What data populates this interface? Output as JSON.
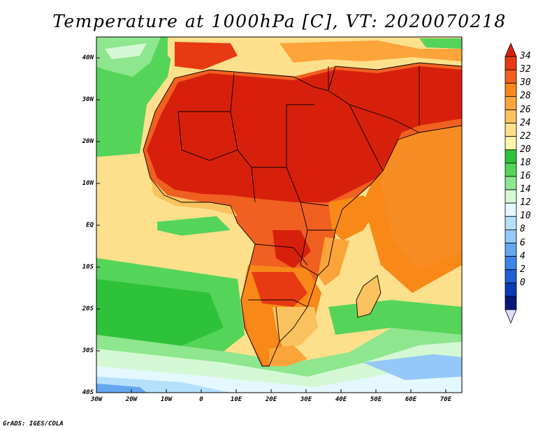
{
  "title": "Temperature at 1000hPa [C], VT: 2020070218",
  "lat_ticks": [
    "40N",
    "30N",
    "20N",
    "10N",
    "EQ",
    "10S",
    "20S",
    "30S",
    "40S"
  ],
  "lon_ticks": [
    "30W",
    "20W",
    "10W",
    "0",
    "10E",
    "20E",
    "30E",
    "40E",
    "50E",
    "60E",
    "70E"
  ],
  "colorbar": {
    "labels": [
      "34",
      "32",
      "30",
      "28",
      "26",
      "24",
      "22",
      "20",
      "18",
      "16",
      "14",
      "12",
      "10",
      "8",
      "6",
      "4",
      "2",
      "0"
    ],
    "colors": [
      "#d7200c",
      "#e83a12",
      "#f06020",
      "#f88818",
      "#faa43a",
      "#fac25e",
      "#fde08c",
      "#fcf6ac",
      "#2ec23a",
      "#55d45a",
      "#8ee68e",
      "#d4f8d4",
      "#e4f8ff",
      "#b4e0fc",
      "#94c8f8",
      "#64a6f0",
      "#3c84e6",
      "#205ed2",
      "#0c3ab4",
      "#07187a",
      "#dcdcfc"
    ]
  },
  "map": {
    "colors": {
      "hot": "#d7200c",
      "warm": "#f06020",
      "warm2": "#fa9e2c",
      "mild": "#fac25e",
      "pale": "#fde08c",
      "green": "#2ec23a",
      "lightgreen": "#8ee68e",
      "cyan": "#e4f8ff",
      "blue": "#94c8f8"
    }
  },
  "credit": "GrADS: IGES/COLA"
}
